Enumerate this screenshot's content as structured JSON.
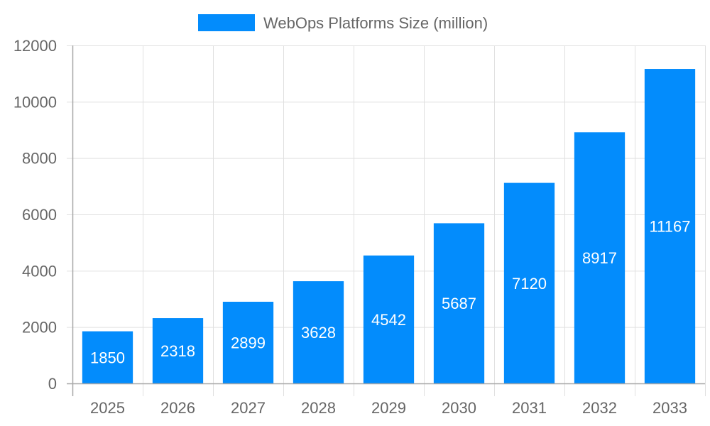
{
  "colors": {
    "bar": "#038cfc",
    "grid": "#e0e0e0",
    "axis": "#a8a8a8",
    "text": "#666666",
    "bar_label": "#ffffff"
  },
  "legend": {
    "label": "WebOps Platforms Size (million)"
  },
  "chart_data": {
    "type": "bar",
    "title": "",
    "xlabel": "",
    "ylabel": "",
    "categories": [
      "2025",
      "2026",
      "2027",
      "2028",
      "2029",
      "2030",
      "2031",
      "2032",
      "2033"
    ],
    "series": [
      {
        "name": "WebOps Platforms Size (million)",
        "values": [
          1850,
          2318,
          2899,
          3628,
          4542,
          5687,
          7120,
          8917,
          11167
        ]
      }
    ],
    "values": [
      1850,
      2318,
      2899,
      3628,
      4542,
      5687,
      7120,
      8917,
      11167
    ],
    "ylim": [
      0,
      12000
    ],
    "yticks": [
      0,
      2000,
      4000,
      6000,
      8000,
      10000,
      12000
    ],
    "grid": true,
    "legend_position": "top",
    "data_labels": "inside-center"
  }
}
